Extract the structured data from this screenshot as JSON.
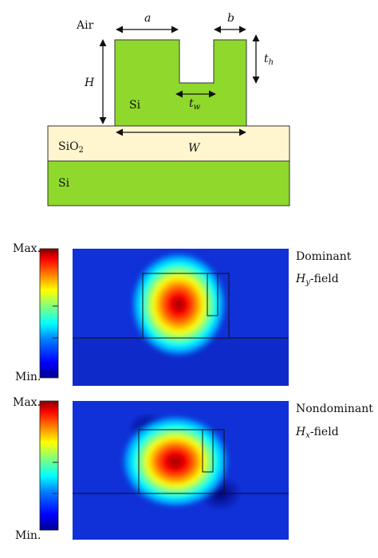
{
  "structure": {
    "air_label": "Air",
    "si_core_label": "Si",
    "sio2_label_main": "SiO",
    "sio2_label_sub": "2",
    "substrate_label": "Si",
    "dims": {
      "a": "a",
      "b": "b",
      "th_main": "t",
      "th_sub": "h",
      "H": "H",
      "tw_main": "t",
      "tw_sub": "w",
      "W": "W"
    },
    "colors": {
      "silicon": "#8fd82c",
      "sio2": "#fff6cf",
      "outline": "#222222"
    }
  },
  "fields": [
    {
      "scale_max": "Max.",
      "scale_min": "Min.",
      "title": "Dominant",
      "field_main": "H",
      "field_sub": "y",
      "field_suffix": "-field"
    },
    {
      "scale_max": "Max.",
      "scale_min": "Min.",
      "title": "Nondominant",
      "field_main": "H",
      "field_sub": "x",
      "field_suffix": "-field"
    }
  ],
  "colormap": [
    "#00008f",
    "#0000ff",
    "#0080ff",
    "#00ffff",
    "#80ff80",
    "#ffff00",
    "#ff8000",
    "#ff0000",
    "#800000"
  ]
}
